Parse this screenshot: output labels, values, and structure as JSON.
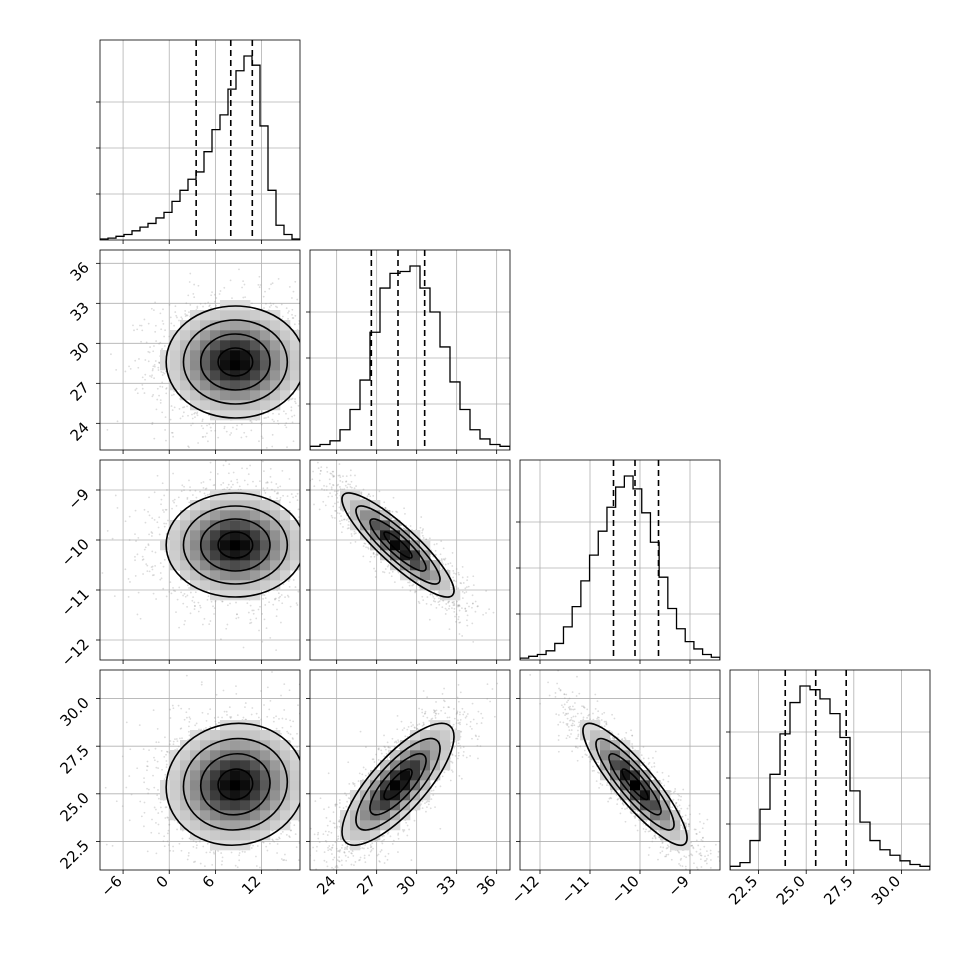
{
  "chart_data": {
    "type": "corner",
    "grid": true,
    "num_params": 4,
    "labels": [
      "",
      "",
      "",
      ""
    ],
    "params": [
      {
        "range": [
          -9,
          17
        ],
        "ticks": [
          -6,
          0,
          6,
          12
        ],
        "tick_labels": [
          "−6",
          "0",
          "6",
          "12"
        ],
        "quantiles": [
          3.5,
          8.0,
          10.8
        ],
        "hist": [
          0.005,
          0.01,
          0.02,
          0.03,
          0.05,
          0.07,
          0.09,
          0.12,
          0.15,
          0.21,
          0.27,
          0.33,
          0.37,
          0.48,
          0.6,
          0.68,
          0.82,
          0.92,
          1.0,
          0.95,
          0.62,
          0.27,
          0.08,
          0.03,
          0.005
        ]
      },
      {
        "range": [
          22,
          37
        ],
        "ticks": [
          24,
          27,
          30,
          33,
          36
        ],
        "tick_labels": [
          "24",
          "27",
          "30",
          "33",
          "36"
        ],
        "quantiles": [
          26.6,
          28.6,
          30.6
        ],
        "hist": [
          0.02,
          0.03,
          0.05,
          0.11,
          0.22,
          0.38,
          0.64,
          0.88,
          0.96,
          0.97,
          1.0,
          0.88,
          0.75,
          0.56,
          0.37,
          0.22,
          0.11,
          0.06,
          0.03,
          0.02
        ]
      },
      {
        "range": [
          -12.4,
          -8.4
        ],
        "ticks": [
          -12,
          -11,
          -10,
          -9
        ],
        "tick_labels": [
          "−12",
          "−11",
          "−10",
          "−9"
        ],
        "quantiles": [
          -10.53,
          -10.1,
          -9.63
        ],
        "hist": [
          0.01,
          0.02,
          0.03,
          0.05,
          0.09,
          0.18,
          0.29,
          0.43,
          0.57,
          0.7,
          0.83,
          0.94,
          1.0,
          0.93,
          0.8,
          0.64,
          0.45,
          0.28,
          0.17,
          0.1,
          0.06,
          0.03,
          0.015
        ]
      },
      {
        "range": [
          21,
          31.5
        ],
        "ticks": [
          22.5,
          25.0,
          27.5,
          30.0
        ],
        "tick_labels": [
          "22.5",
          "25.0",
          "27.5",
          "30.0"
        ],
        "quantiles": [
          23.9,
          25.5,
          27.1
        ],
        "hist": [
          0.02,
          0.04,
          0.16,
          0.33,
          0.52,
          0.74,
          0.91,
          1.0,
          0.98,
          0.93,
          0.85,
          0.72,
          0.43,
          0.26,
          0.16,
          0.11,
          0.08,
          0.05,
          0.03,
          0.02
        ]
      }
    ],
    "pairs": [
      {
        "row": 1,
        "col": 0,
        "mean": [
          8.6,
          28.6
        ],
        "sd": [
          4.5,
          2.1
        ],
        "rho": 0.0
      },
      {
        "row": 2,
        "col": 0,
        "mean": [
          8.6,
          -10.1
        ],
        "sd": [
          4.5,
          0.52
        ],
        "rho": 0.0
      },
      {
        "row": 2,
        "col": 1,
        "mean": [
          28.6,
          -10.1
        ],
        "sd": [
          2.1,
          0.52
        ],
        "rho": -0.88
      },
      {
        "row": 3,
        "col": 0,
        "mean": [
          8.6,
          25.5
        ],
        "sd": [
          4.5,
          1.6
        ],
        "rho": 0.05
      },
      {
        "row": 3,
        "col": 1,
        "mean": [
          28.6,
          25.5
        ],
        "sd": [
          2.1,
          1.6
        ],
        "rho": 0.78
      },
      {
        "row": 3,
        "col": 2,
        "mean": [
          -10.1,
          25.5
        ],
        "sd": [
          0.52,
          1.6
        ],
        "rho": -0.88
      }
    ]
  }
}
